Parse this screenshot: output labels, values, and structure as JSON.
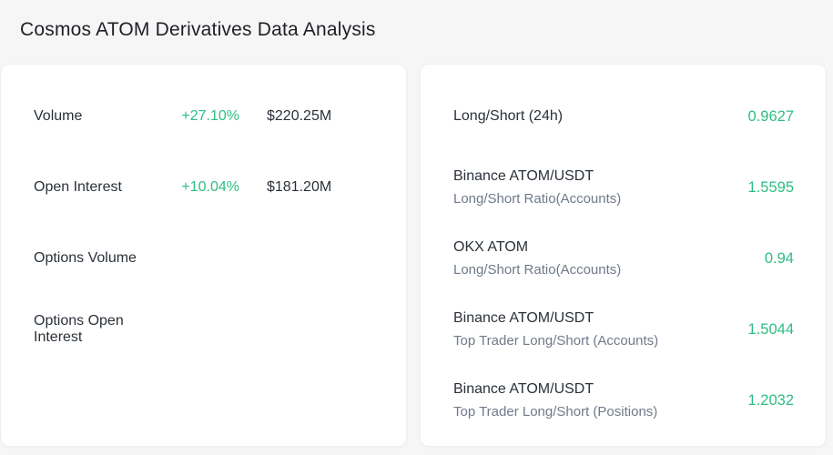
{
  "page": {
    "title": "Cosmos ATOM Derivatives Data Analysis"
  },
  "colors": {
    "accent_teal_green": "#2EBD85",
    "text_primary": "#2B3139",
    "text_secondary": "#707A8A",
    "page_background": "#F6F6F6",
    "card_background": "#FFFFFF"
  },
  "left_card": {
    "rows": [
      {
        "label": "Volume",
        "change": "+27.10%",
        "value": "$220.25M"
      },
      {
        "label": "Open Interest",
        "change": "+10.04%",
        "value": "$181.20M"
      },
      {
        "label": "Options Volume",
        "change": "",
        "value": ""
      },
      {
        "label": "Options Open Interest",
        "change": "",
        "value": ""
      }
    ]
  },
  "right_card": {
    "rows": [
      {
        "label": "Long/Short (24h)",
        "sublabel": "",
        "value": "0.9627"
      },
      {
        "label": "Binance ATOM/USDT",
        "sublabel": "Long/Short Ratio(Accounts)",
        "value": "1.5595"
      },
      {
        "label": "OKX ATOM",
        "sublabel": "Long/Short Ratio(Accounts)",
        "value": "0.94"
      },
      {
        "label": "Binance ATOM/USDT",
        "sublabel": "Top Trader Long/Short (Accounts)",
        "value": "1.5044"
      },
      {
        "label": "Binance ATOM/USDT",
        "sublabel": "Top Trader Long/Short (Positions)",
        "value": "1.2032"
      }
    ]
  }
}
